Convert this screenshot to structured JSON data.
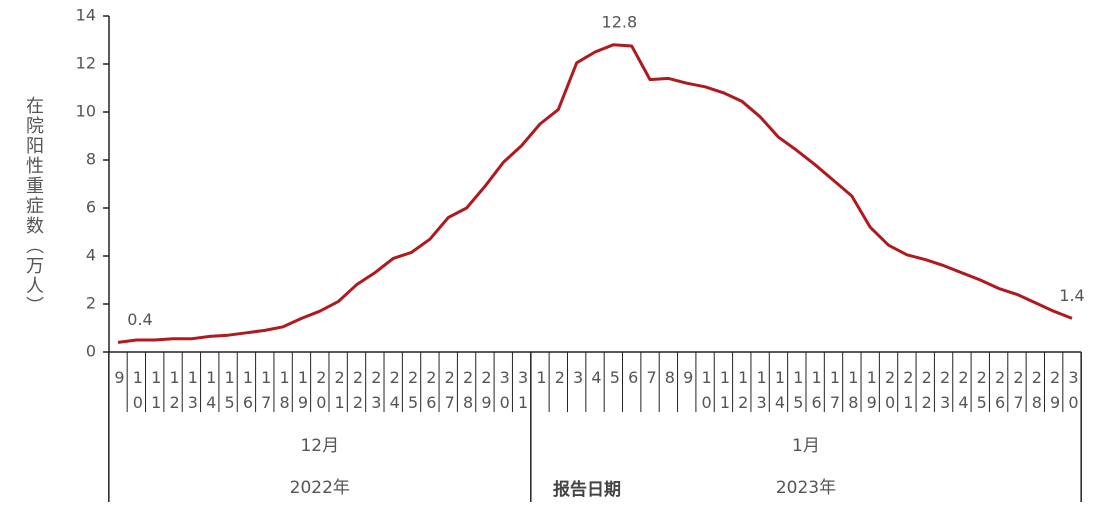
{
  "chart_data": {
    "type": "line",
    "y_label": "在院阳性重症数（万人）",
    "x_label": "报告日期",
    "categories": [
      "9",
      "10",
      "11",
      "12",
      "13",
      "14",
      "15",
      "16",
      "17",
      "18",
      "19",
      "20",
      "21",
      "22",
      "23",
      "24",
      "25",
      "26",
      "27",
      "28",
      "29",
      "30",
      "31",
      "1",
      "2",
      "3",
      "4",
      "5",
      "6",
      "7",
      "8",
      "9",
      "10",
      "11",
      "12",
      "13",
      "14",
      "15",
      "16",
      "17",
      "18",
      "19",
      "20",
      "21",
      "22",
      "23",
      "24",
      "25",
      "26",
      "27",
      "28",
      "29",
      "30"
    ],
    "month_labels": [
      "12月",
      "1月"
    ],
    "year_labels": [
      "2022年",
      "2023年"
    ],
    "series": [
      {
        "color": "#b0191e",
        "values": [
          0.4,
          0.5,
          0.5,
          0.55,
          0.55,
          0.65,
          0.7,
          0.8,
          0.9,
          1.05,
          1.4,
          1.7,
          2.1,
          2.8,
          3.3,
          3.9,
          4.15,
          4.7,
          5.6,
          6.0,
          6.9,
          7.9,
          8.6,
          9.5,
          10.1,
          12.05,
          12.5,
          12.8,
          12.75,
          11.35,
          11.4,
          11.2,
          11.05,
          10.8,
          10.45,
          9.8,
          8.95,
          8.4,
          7.8,
          7.15,
          6.5,
          5.2,
          4.45,
          4.05,
          3.85,
          3.6,
          3.3,
          3.0,
          2.65,
          2.4,
          2.05,
          1.7,
          1.4
        ]
      }
    ],
    "ylim": [
      0,
      14
    ],
    "yticks": [
      0,
      2,
      4,
      6,
      8,
      10,
      12,
      14
    ]
  }
}
